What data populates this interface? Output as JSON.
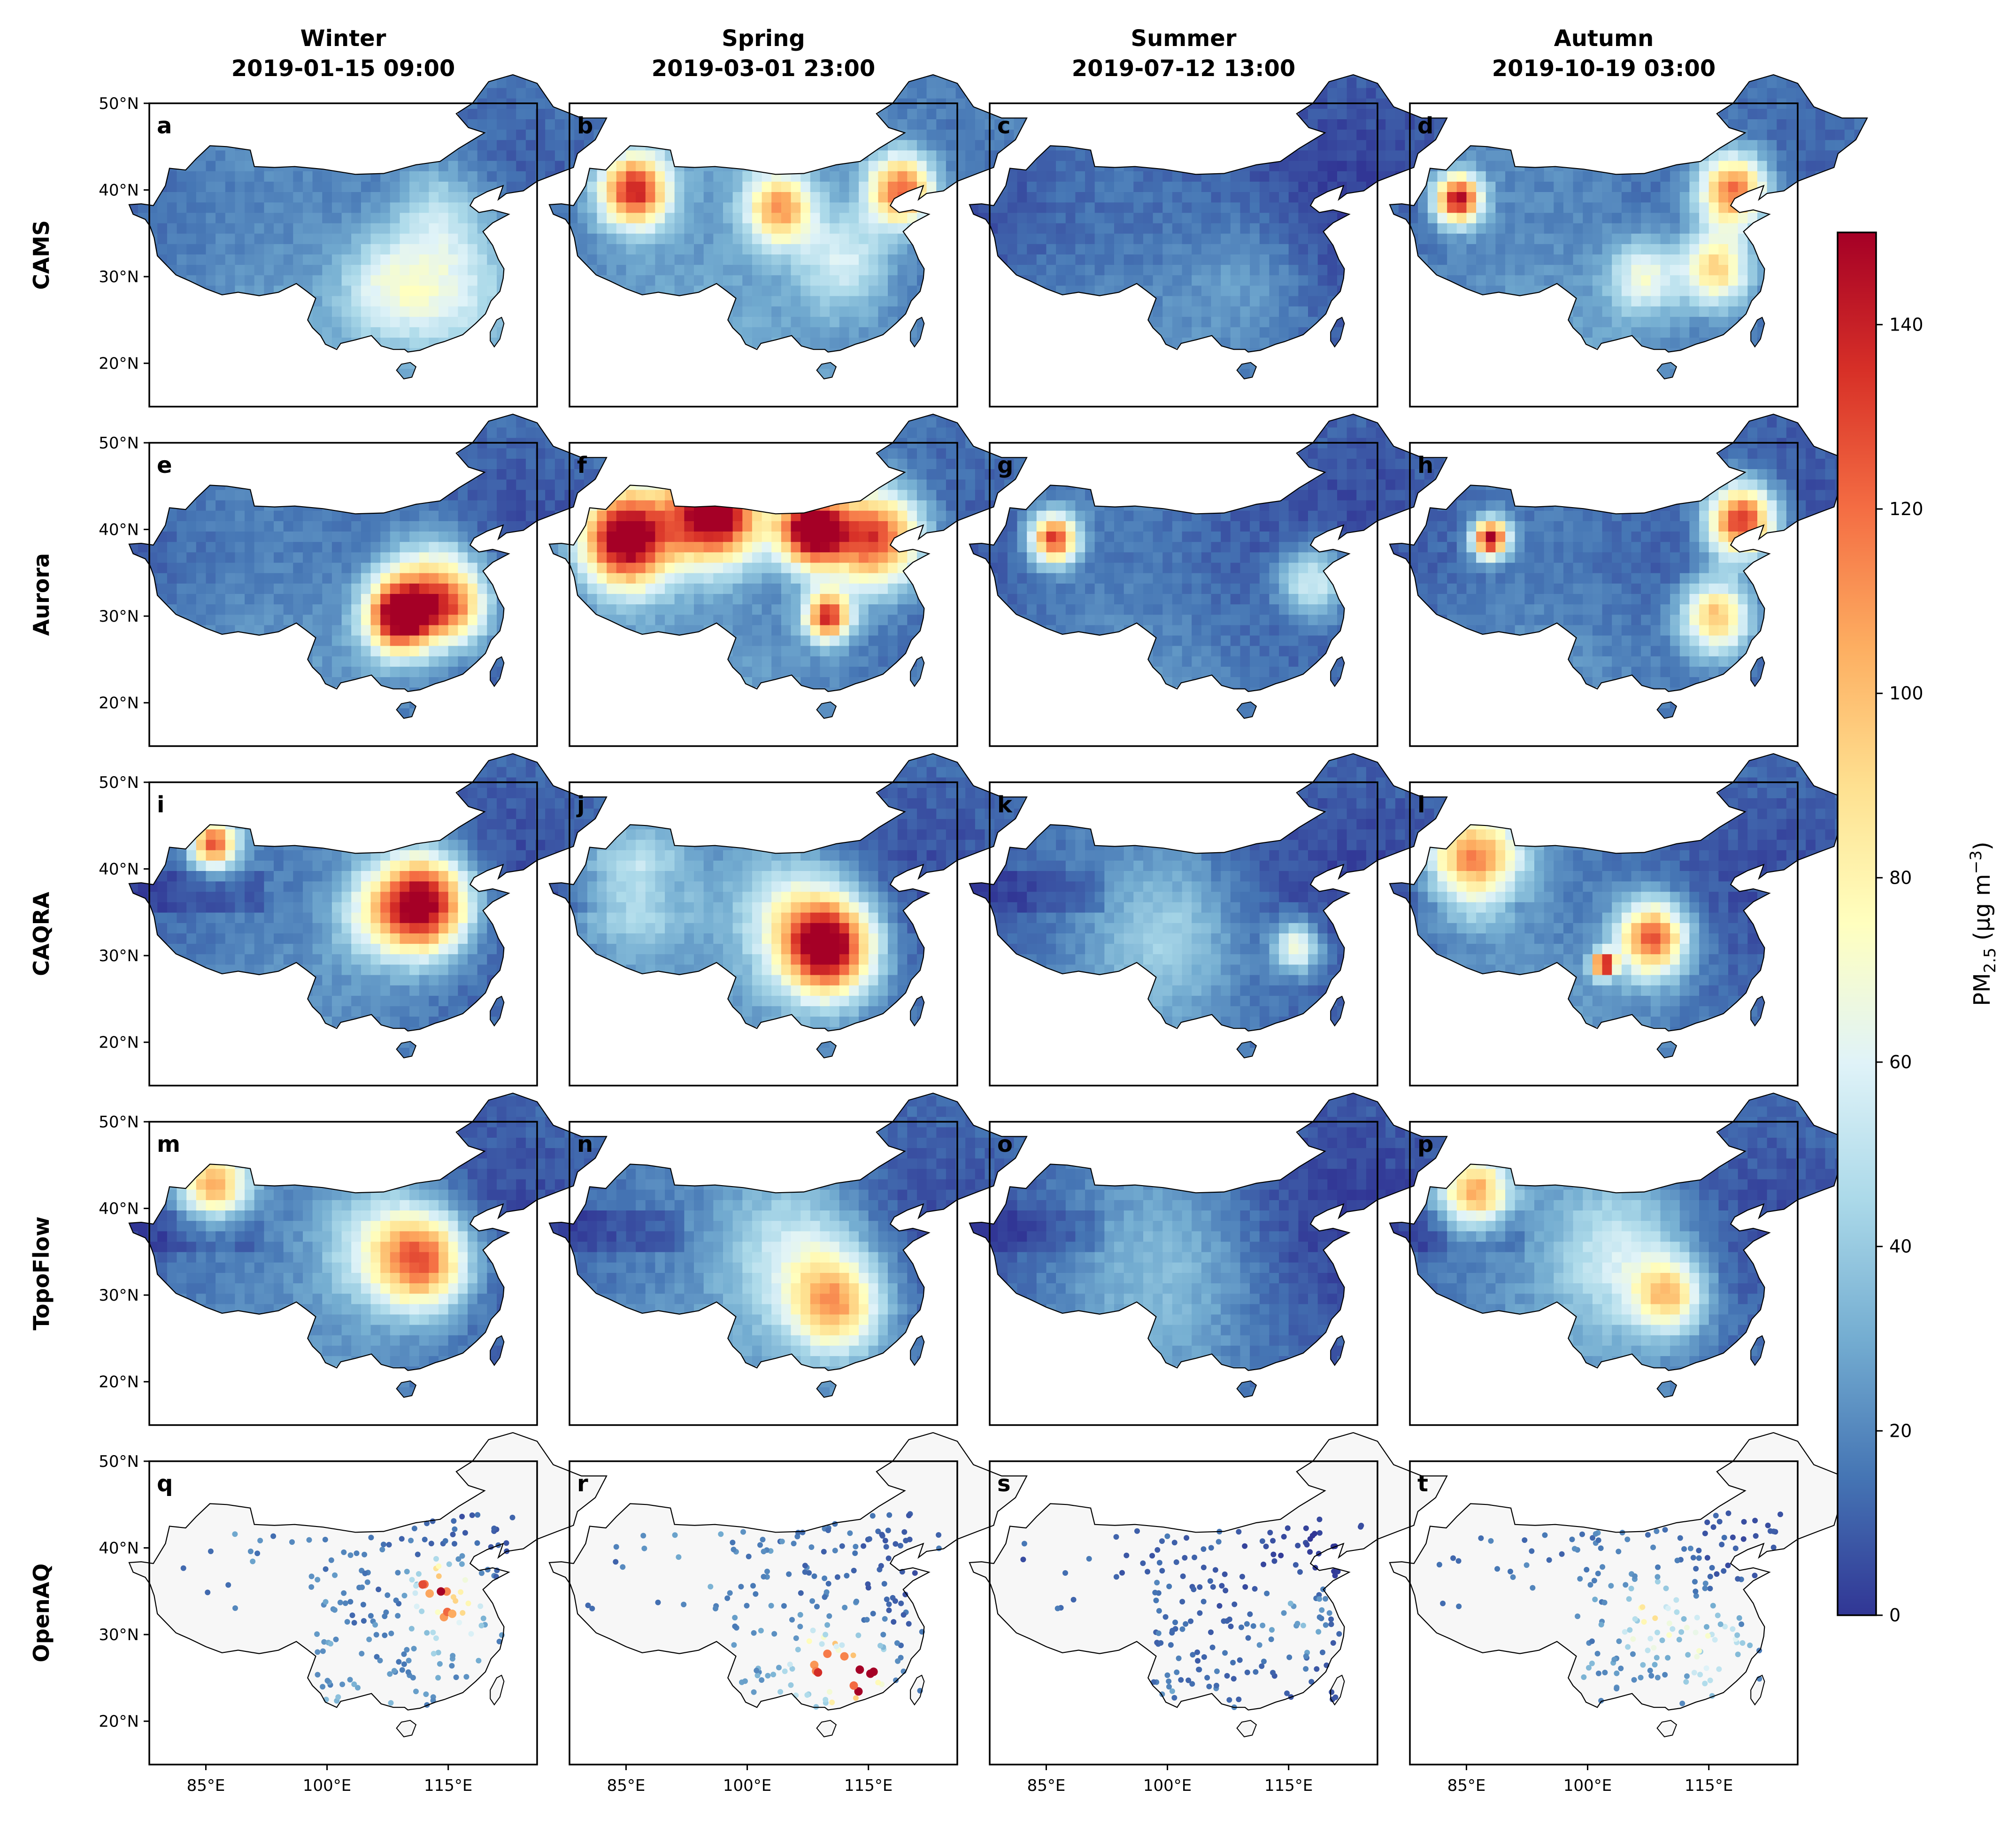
{
  "chart_data": {
    "type": "heatmap",
    "title": "",
    "seasons": [
      {
        "season": "Winter",
        "datetime": "2019-01-15 09:00"
      },
      {
        "season": "Spring",
        "datetime": "2019-03-01 23:00"
      },
      {
        "season": "Summer",
        "datetime": "2019-07-12 13:00"
      },
      {
        "season": "Autumn",
        "datetime": "2019-10-19 03:00"
      }
    ],
    "sources": [
      "CAMS",
      "Aurora",
      "CAQRA",
      "TopoFlow",
      "OpenAQ"
    ],
    "panel_letters": [
      "a",
      "b",
      "c",
      "d",
      "e",
      "f",
      "g",
      "h",
      "i",
      "j",
      "k",
      "l",
      "m",
      "n",
      "o",
      "p",
      "q",
      "r",
      "s",
      "t"
    ],
    "x_ticks": [
      "85°E",
      "100°E",
      "115°E"
    ],
    "x_tick_values": [
      85,
      100,
      115
    ],
    "y_ticks": [
      "50°N",
      "40°N",
      "30°N",
      "20°N"
    ],
    "y_tick_values": [
      50,
      40,
      30,
      20
    ],
    "lon_range": [
      78,
      126
    ],
    "lat_range": [
      15,
      50
    ],
    "colorbar": {
      "label_main": "PM",
      "label_sub": "2.5",
      "label_unit": " (μg m",
      "label_sup": "−3",
      "label_close": ")",
      "ticks": [
        "0",
        "20",
        "40",
        "60",
        "80",
        "100",
        "120",
        "140"
      ],
      "tick_values": [
        0,
        20,
        40,
        60,
        80,
        100,
        120,
        140
      ],
      "vmin": 0,
      "vmax": 150,
      "colormap": "RdYlBu_r"
    },
    "panels": [
      {
        "source": "CAMS",
        "season": "Winter",
        "base": 18,
        "hotspots": [
          [
            115,
            29,
            45,
            6
          ],
          [
            107,
            29,
            30,
            4
          ],
          [
            114,
            38,
            25,
            4
          ]
        ]
      },
      {
        "source": "CAMS",
        "season": "Spring",
        "base": 22,
        "hotspots": [
          [
            86,
            40,
            120,
            3
          ],
          [
            104,
            38,
            90,
            3
          ],
          [
            119,
            40,
            110,
            3
          ],
          [
            112,
            32,
            40,
            4
          ]
        ]
      },
      {
        "source": "CAMS",
        "season": "Summer",
        "base": 12,
        "hotspots": [
          [
            110,
            30,
            14,
            6
          ]
        ]
      },
      {
        "source": "CAMS",
        "season": "Autumn",
        "base": 18,
        "hotspots": [
          [
            84,
            39,
            130,
            2
          ],
          [
            118,
            40,
            110,
            3
          ],
          [
            116,
            31,
            80,
            3
          ],
          [
            107,
            30,
            50,
            3
          ]
        ]
      },
      {
        "source": "Aurora",
        "season": "Winter",
        "base": 16,
        "hotspots": [
          [
            109,
            30,
            140,
            3
          ],
          [
            113,
            34,
            60,
            4
          ],
          [
            116,
            31,
            70,
            3
          ]
        ]
      },
      {
        "source": "Aurora",
        "season": "Spring",
        "base": 18,
        "hotspots": [
          [
            85,
            39,
            150,
            4
          ],
          [
            96,
            42,
            150,
            4
          ],
          [
            108,
            40,
            150,
            3
          ],
          [
            116,
            39,
            120,
            4
          ],
          [
            110,
            30,
            120,
            2
          ]
        ]
      },
      {
        "source": "Aurora",
        "season": "Summer",
        "base": 14,
        "hotspots": [
          [
            86,
            39,
            120,
            2
          ],
          [
            118,
            34,
            50,
            3
          ]
        ]
      },
      {
        "source": "Aurora",
        "season": "Autumn",
        "base": 14,
        "hotspots": [
          [
            119,
            41,
            130,
            3
          ],
          [
            116,
            30,
            90,
            3
          ],
          [
            88,
            39,
            140,
            1.5
          ]
        ]
      },
      {
        "source": "CAQRA",
        "season": "Winter",
        "base": 15,
        "hotspots": [
          [
            112,
            36,
            140,
            4
          ],
          [
            86,
            43,
            110,
            2
          ],
          [
            106,
            35,
            40,
            4
          ]
        ]
      },
      {
        "source": "CAQRA",
        "season": "Spring",
        "base": 16,
        "hotspots": [
          [
            110,
            31,
            140,
            4
          ],
          [
            105,
            35,
            40,
            5
          ],
          [
            86,
            38,
            40,
            5
          ]
        ]
      },
      {
        "source": "CAQRA",
        "season": "Summer",
        "base": 14,
        "hotspots": [
          [
            116,
            31,
            60,
            2
          ],
          [
            100,
            33,
            25,
            6
          ]
        ]
      },
      {
        "source": "CAQRA",
        "season": "Autumn",
        "base": 16,
        "hotspots": [
          [
            86,
            41,
            100,
            4
          ],
          [
            108,
            32,
            110,
            3
          ],
          [
            102,
            29,
            130,
            1
          ]
        ]
      },
      {
        "source": "TopoFlow",
        "season": "Winter",
        "base": 15,
        "hotspots": [
          [
            86,
            43,
            90,
            3
          ],
          [
            112,
            34,
            100,
            4
          ],
          [
            106,
            36,
            40,
            5
          ]
        ]
      },
      {
        "source": "TopoFlow",
        "season": "Spring",
        "base": 16,
        "hotspots": [
          [
            111,
            29,
            80,
            4
          ],
          [
            106,
            35,
            40,
            6
          ]
        ]
      },
      {
        "source": "TopoFlow",
        "season": "Summer",
        "base": 12,
        "hotspots": [
          [
            100,
            34,
            20,
            8
          ]
        ]
      },
      {
        "source": "TopoFlow",
        "season": "Autumn",
        "base": 16,
        "hotspots": [
          [
            86,
            42,
            90,
            3
          ],
          [
            110,
            30,
            70,
            3
          ],
          [
            104,
            35,
            40,
            6
          ]
        ]
      },
      {
        "source": "OpenAQ",
        "season": "Winter",
        "base": 20,
        "hotspots": [
          [
            114,
            35,
            140,
            2
          ],
          [
            116,
            32,
            60,
            3
          ]
        ]
      },
      {
        "source": "OpenAQ",
        "season": "Spring",
        "base": 20,
        "hotspots": [
          [
            114,
            25,
            140,
            2
          ],
          [
            110,
            26,
            90,
            3
          ]
        ]
      },
      {
        "source": "OpenAQ",
        "season": "Summer",
        "base": 12,
        "hotspots": [
          [
            116,
            32,
            30,
            3
          ]
        ]
      },
      {
        "source": "OpenAQ",
        "season": "Autumn",
        "base": 18,
        "hotspots": [
          [
            108,
            32,
            60,
            3
          ],
          [
            116,
            28,
            60,
            3
          ]
        ]
      }
    ]
  }
}
